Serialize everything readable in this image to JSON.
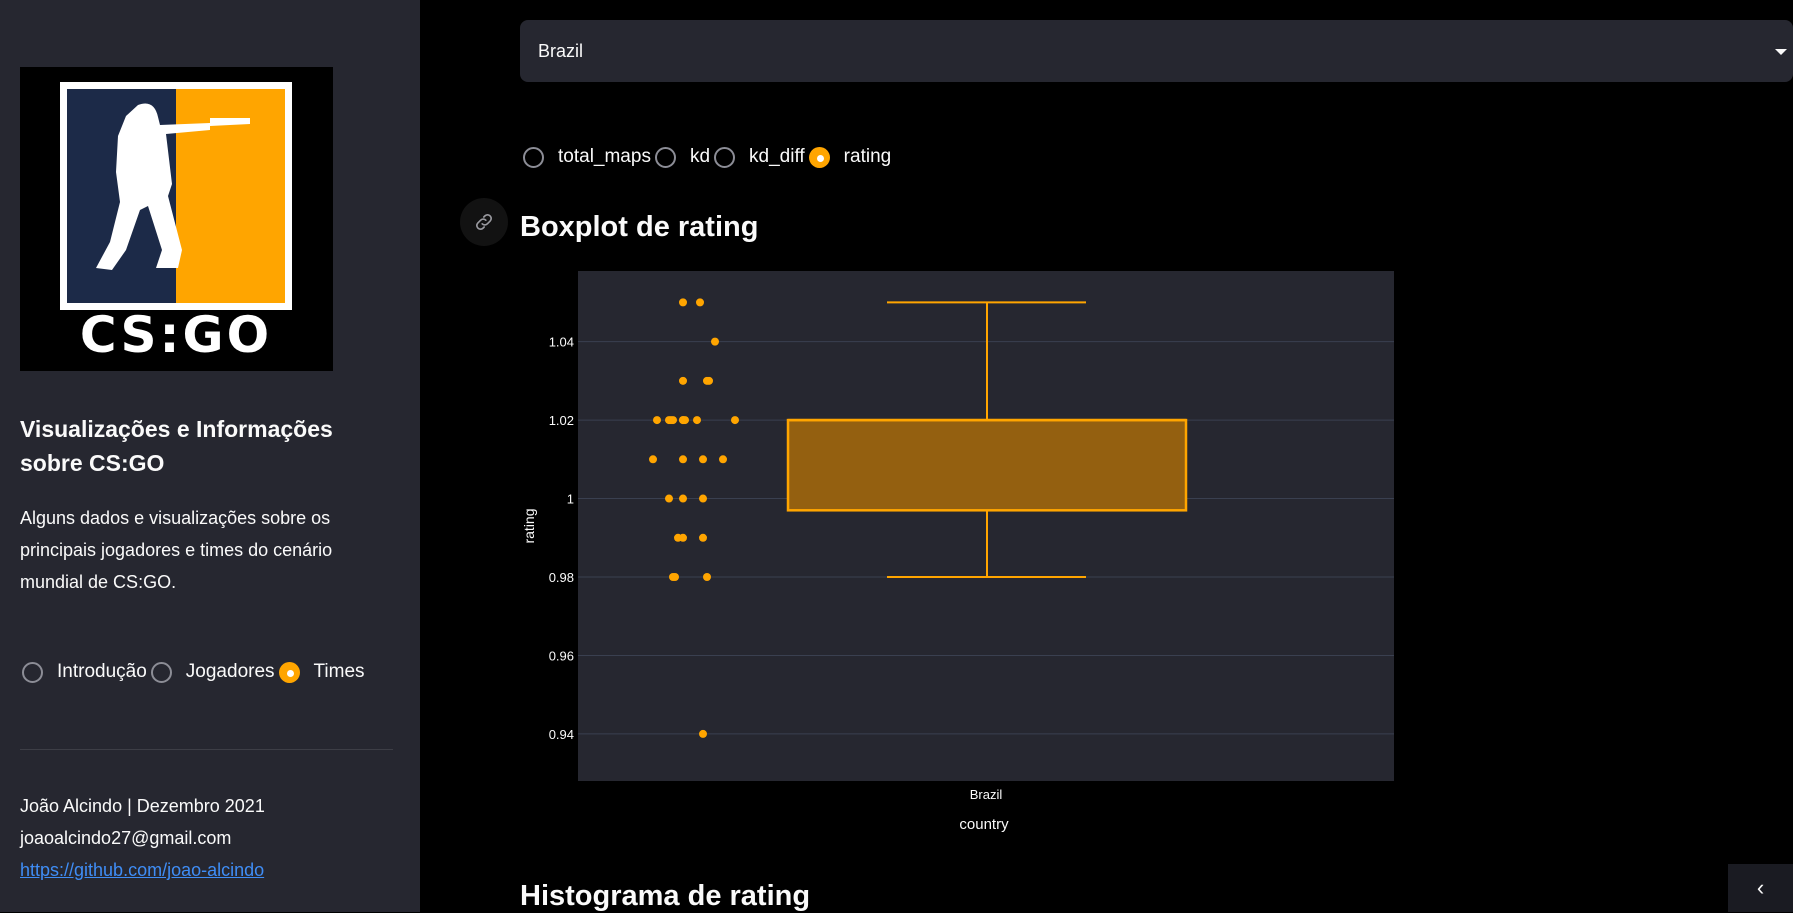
{
  "sidebar": {
    "logo_text": "CS:GO",
    "title": "Visualizações e Informações sobre CS:GO",
    "description": "Alguns dados e visualizações sobre os principais jogadores e times do cenário mundial de CS:GO.",
    "nav_options": [
      {
        "label": "Introdução",
        "selected": false
      },
      {
        "label": "Jogadores",
        "selected": false
      },
      {
        "label": "Times",
        "selected": true
      }
    ],
    "footer": {
      "author_line": "João Alcindo | Dezembro 2021",
      "email": "joaoalcindo27@gmail.com",
      "github": "https://github.com/joao-alcindo"
    }
  },
  "main": {
    "country_select": {
      "value": "Brazil"
    },
    "metric_options": [
      {
        "label": "total_maps",
        "selected": false
      },
      {
        "label": "kd",
        "selected": false
      },
      {
        "label": "kd_diff",
        "selected": false
      },
      {
        "label": "rating",
        "selected": true
      }
    ],
    "boxplot_title": "Boxplot de rating",
    "histogram_title": "Histograma de rating"
  },
  "colors": {
    "accent": "#ffa500",
    "sidebar_bg": "#262730",
    "plot_bg": "#262730",
    "box_fill": "#946010"
  },
  "chart_data": {
    "type": "box",
    "xlabel": "country",
    "ylabel": "rating",
    "categories": [
      "Brazil"
    ],
    "ylim": [
      0.928,
      1.058
    ],
    "yticks": [
      0.94,
      0.96,
      0.98,
      1,
      1.02,
      1.04
    ],
    "ytick_labels": [
      "0.94",
      "0.96",
      "0.98",
      "1",
      "1.02",
      "1.04"
    ],
    "box": {
      "min": 0.98,
      "q1": 0.997,
      "median": 1.02,
      "q3": 1.02,
      "max": 1.05
    },
    "points": [
      1.05,
      1.05,
      1.04,
      1.03,
      1.03,
      1.03,
      1.02,
      1.02,
      1.02,
      1.02,
      1.02,
      1.02,
      1.02,
      1.02,
      1.02,
      1.01,
      1.01,
      1.01,
      1.01,
      1.0,
      1.0,
      1.0,
      0.99,
      0.99,
      0.99,
      0.98,
      0.98,
      0.98,
      0.94
    ],
    "grid": true,
    "series_color": "#ffa500"
  }
}
